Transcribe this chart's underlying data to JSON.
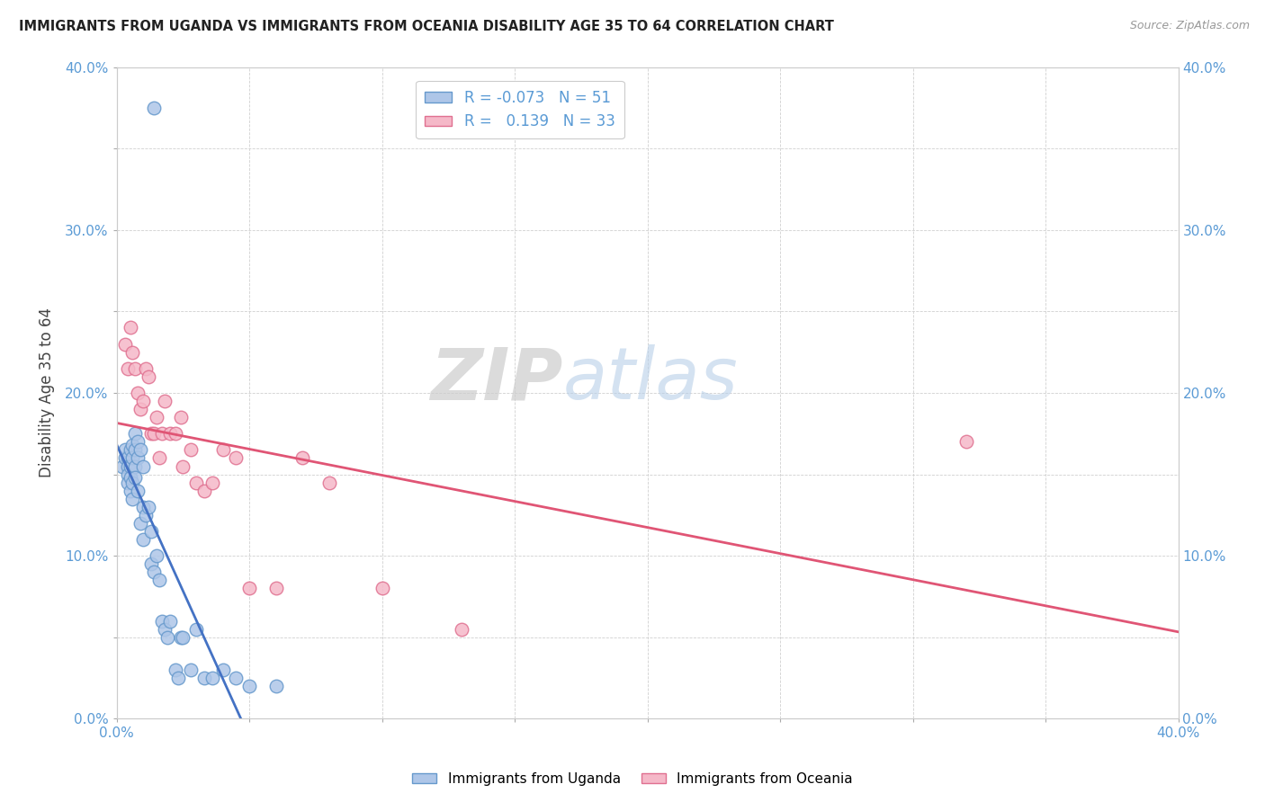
{
  "title": "IMMIGRANTS FROM UGANDA VS IMMIGRANTS FROM OCEANIA DISABILITY AGE 35 TO 64 CORRELATION CHART",
  "source": "Source: ZipAtlas.com",
  "ylabel": "Disability Age 35 to 64",
  "xlim": [
    0.0,
    0.4
  ],
  "ylim": [
    0.0,
    0.4
  ],
  "xtick_positions": [
    0.0,
    0.05,
    0.1,
    0.15,
    0.2,
    0.25,
    0.3,
    0.35,
    0.4
  ],
  "ytick_positions": [
    0.0,
    0.05,
    0.1,
    0.15,
    0.2,
    0.25,
    0.3,
    0.35,
    0.4
  ],
  "x_label_ticks": [
    0.0,
    0.4
  ],
  "y_label_ticks": [
    0.0,
    0.1,
    0.2,
    0.3,
    0.4
  ],
  "x_label_values": [
    "0.0%",
    "40.0%"
  ],
  "y_label_values": [
    "0.0%",
    "10.0%",
    "20.0%",
    "30.0%",
    "40.0%"
  ],
  "uganda_color": "#aec6e8",
  "oceania_color": "#f5b8c8",
  "uganda_edge": "#6699cc",
  "oceania_edge": "#e07090",
  "uganda_R": -0.073,
  "uganda_N": 51,
  "oceania_R": 0.139,
  "oceania_N": 33,
  "legend_label_uganda": "Immigrants from Uganda",
  "legend_label_oceania": "Immigrants from Oceania",
  "uganda_scatter_x": [
    0.002,
    0.003,
    0.003,
    0.004,
    0.004,
    0.004,
    0.004,
    0.005,
    0.005,
    0.005,
    0.005,
    0.006,
    0.006,
    0.006,
    0.006,
    0.007,
    0.007,
    0.007,
    0.007,
    0.008,
    0.008,
    0.008,
    0.009,
    0.009,
    0.01,
    0.01,
    0.01,
    0.011,
    0.012,
    0.013,
    0.013,
    0.014,
    0.015,
    0.016,
    0.017,
    0.018,
    0.019,
    0.02,
    0.022,
    0.023,
    0.024,
    0.025,
    0.028,
    0.03,
    0.033,
    0.036,
    0.04,
    0.045,
    0.05,
    0.06,
    0.014
  ],
  "uganda_scatter_y": [
    0.155,
    0.16,
    0.165,
    0.16,
    0.155,
    0.15,
    0.145,
    0.165,
    0.155,
    0.148,
    0.14,
    0.168,
    0.16,
    0.145,
    0.135,
    0.175,
    0.165,
    0.155,
    0.148,
    0.17,
    0.16,
    0.14,
    0.165,
    0.12,
    0.155,
    0.13,
    0.11,
    0.125,
    0.13,
    0.115,
    0.095,
    0.09,
    0.1,
    0.085,
    0.06,
    0.055,
    0.05,
    0.06,
    0.03,
    0.025,
    0.05,
    0.05,
    0.03,
    0.055,
    0.025,
    0.025,
    0.03,
    0.025,
    0.02,
    0.02,
    0.375
  ],
  "oceania_scatter_x": [
    0.003,
    0.004,
    0.005,
    0.006,
    0.007,
    0.008,
    0.009,
    0.01,
    0.011,
    0.012,
    0.013,
    0.014,
    0.015,
    0.016,
    0.017,
    0.018,
    0.02,
    0.022,
    0.024,
    0.025,
    0.028,
    0.03,
    0.033,
    0.036,
    0.04,
    0.045,
    0.05,
    0.06,
    0.07,
    0.08,
    0.1,
    0.13,
    0.32
  ],
  "oceania_scatter_y": [
    0.23,
    0.215,
    0.24,
    0.225,
    0.215,
    0.2,
    0.19,
    0.195,
    0.215,
    0.21,
    0.175,
    0.175,
    0.185,
    0.16,
    0.175,
    0.195,
    0.175,
    0.175,
    0.185,
    0.155,
    0.165,
    0.145,
    0.14,
    0.145,
    0.165,
    0.16,
    0.08,
    0.08,
    0.16,
    0.145,
    0.08,
    0.055,
    0.17
  ],
  "watermark_zip": "ZIP",
  "watermark_atlas": "atlas",
  "background_color": "#ffffff",
  "grid_color": "#d0d0d0",
  "tick_color": "#5b9bd5",
  "line_uganda_color": "#4472c4",
  "line_oceania_color": "#e05575"
}
